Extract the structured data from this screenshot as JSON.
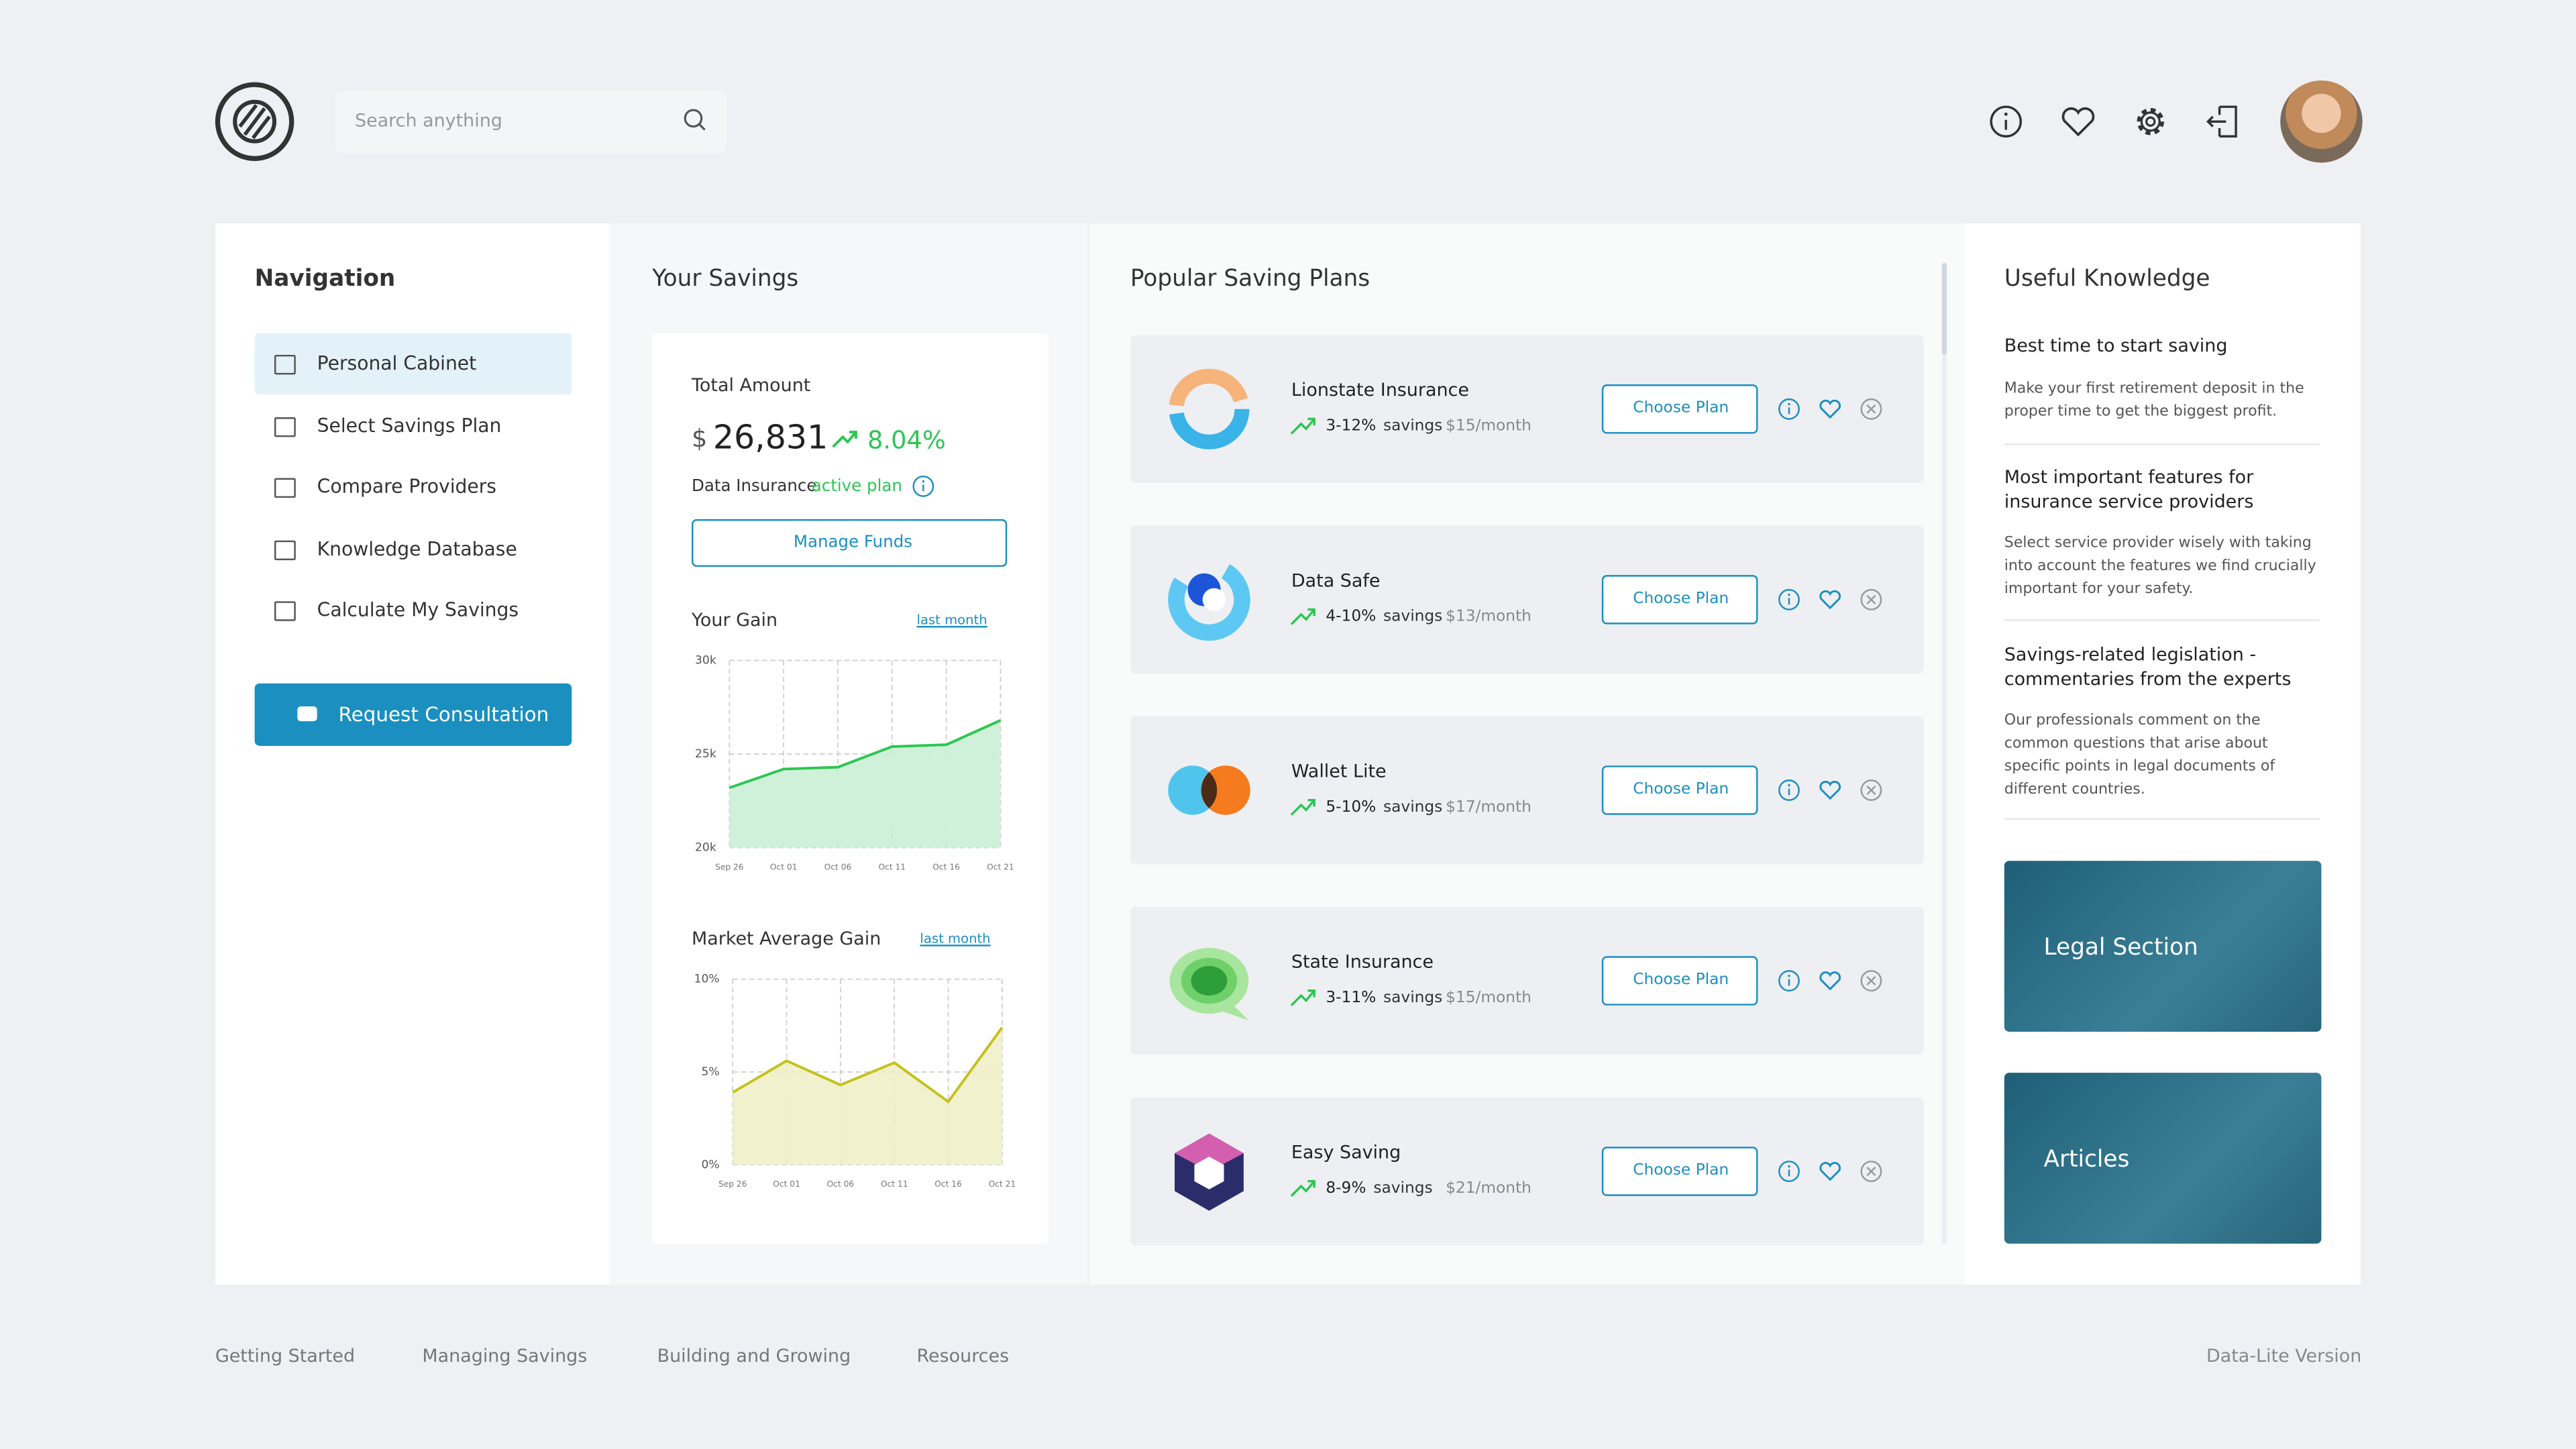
{
  "header": {
    "search_placeholder": "Search anything"
  },
  "navigation": {
    "title": "Navigation",
    "items": [
      "Personal Cabinet",
      "Select Savings Plan",
      "Compare Providers",
      "Knowledge Database",
      "Calculate My Savings"
    ],
    "button": "Request Consultation"
  },
  "savings": {
    "title": "Your Savings",
    "total_label": "Total Amount",
    "currency": "$",
    "total": "26,831",
    "change": "8.04%",
    "plan_name": "Data Insurance",
    "plan_status": "active plan",
    "button": "Manage Funds"
  },
  "chart_data": [
    {
      "type": "area",
      "title": "Your Gain",
      "link": "last month",
      "categories": [
        "Sep 26",
        "Oct 01",
        "Oct 06",
        "Oct 11",
        "Oct 16",
        "Oct 21"
      ],
      "values": [
        23200,
        24200,
        24300,
        25400,
        25500,
        26800
      ],
      "color": "#2cc653",
      "fill": "#c8efd2",
      "ylim": [
        20000,
        30000
      ],
      "yticks": [
        {
          "value": 20000,
          "label": "20k"
        },
        {
          "value": 25000,
          "label": "25k"
        },
        {
          "value": 30000,
          "label": "30k"
        }
      ],
      "grid": true
    },
    {
      "type": "area",
      "title": "Market Average Gain",
      "link": "last month",
      "categories": [
        "Sep 26",
        "Oct 01",
        "Oct 06",
        "Oct 11",
        "Oct 16",
        "Oct 21"
      ],
      "values": [
        3.9,
        5.6,
        4.3,
        5.5,
        3.4,
        7.4
      ],
      "color": "#c4c21c",
      "fill": "#efeec6",
      "ylim": [
        0,
        10
      ],
      "yticks": [
        {
          "value": 0,
          "label": "0%"
        },
        {
          "value": 5,
          "label": "5%"
        },
        {
          "value": 10,
          "label": "10%"
        }
      ],
      "grid": true
    }
  ],
  "plans": {
    "title": "Popular Saving Plans",
    "button": "Choose Plan",
    "items": [
      {
        "name": "Lionstate Insurance",
        "range": "3-12%",
        "savings_label": "savings",
        "price": "$15/month"
      },
      {
        "name": "Data Safe",
        "range": "4-10%",
        "savings_label": "savings",
        "price": "$13/month"
      },
      {
        "name": "Wallet Lite",
        "range": "5-10%",
        "savings_label": "savings",
        "price": "$17/month"
      },
      {
        "name": "State Insurance",
        "range": "3-11%",
        "savings_label": "savings",
        "price": "$15/month"
      },
      {
        "name": "Easy Saving",
        "range": "8-9%",
        "savings_label": "savings",
        "price": "$21/month"
      }
    ]
  },
  "knowledge": {
    "title": "Useful Knowledge",
    "items": [
      {
        "title": "Best time to start saving",
        "text": "Make your first retirement deposit in the proper time to get the biggest profit."
      },
      {
        "title": "Most important features for insurance service providers",
        "text": "Select service provider wisely with taking into account the features we find crucially important for your safety."
      },
      {
        "title": "Savings-related legislation - commentaries from the experts",
        "text": "Our professionals comment on the common questions that arise about specific points in legal documents of different countries."
      }
    ],
    "cards": [
      "Legal Section",
      "Articles"
    ]
  },
  "footer": {
    "links": [
      "Getting Started",
      "Managing Savings",
      "Building and Growing",
      "Resources"
    ],
    "version": "Data-Lite Version"
  }
}
